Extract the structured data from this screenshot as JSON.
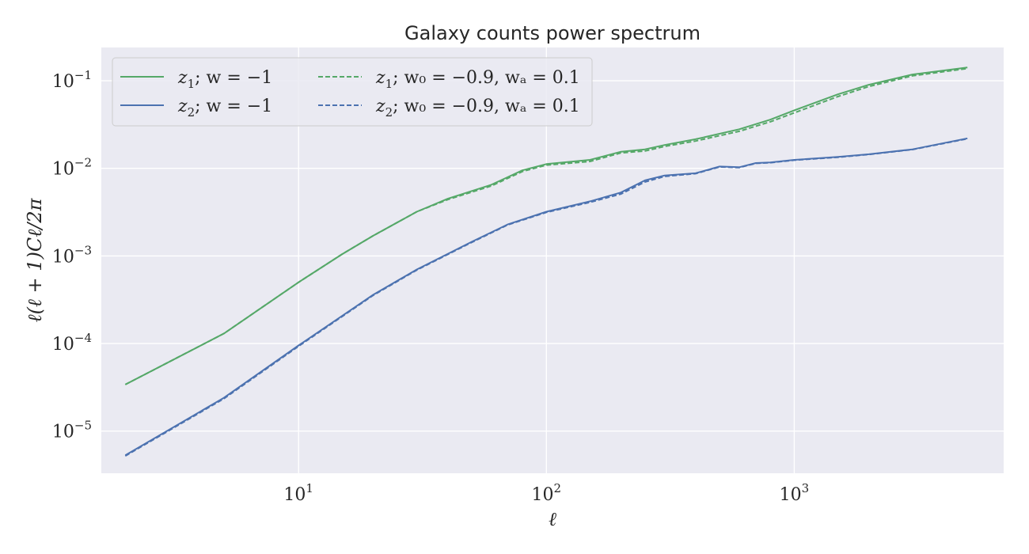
{
  "chart_data": {
    "type": "line",
    "title": "Galaxy counts power spectrum",
    "xlabel": "ℓ",
    "ylabel": "ℓ(ℓ + 1)Cℓ/2π",
    "xscale": "log",
    "yscale": "log",
    "xlim": [
      1.6,
      7000
    ],
    "ylim": [
      3.3e-06,
      0.24
    ],
    "grid": true,
    "legend_placement": "top-left",
    "x_ticks": [
      {
        "value": 10,
        "base": "10",
        "exp": "1"
      },
      {
        "value": 100,
        "base": "10",
        "exp": "2"
      },
      {
        "value": 1000,
        "base": "10",
        "exp": "3"
      }
    ],
    "y_ticks": [
      {
        "value": 0.1,
        "base": "10",
        "exp": "−1"
      },
      {
        "value": 0.01,
        "base": "10",
        "exp": "−2"
      },
      {
        "value": 0.001,
        "base": "10",
        "exp": "−3"
      },
      {
        "value": 0.0001,
        "base": "10",
        "exp": "−4"
      },
      {
        "value": 1e-05,
        "base": "10",
        "exp": "−5"
      }
    ],
    "series": [
      {
        "name": "z₁; w = −1",
        "color": "#55a868",
        "dash": "solid",
        "points": [
          [
            2,
            3.4e-05
          ],
          [
            5,
            0.00013
          ],
          [
            10,
            0.0005
          ],
          [
            15,
            0.00105
          ],
          [
            20,
            0.0017
          ],
          [
            30,
            0.0032
          ],
          [
            40,
            0.0045
          ],
          [
            60,
            0.0065
          ],
          [
            80,
            0.0095
          ],
          [
            100,
            0.0112
          ],
          [
            150,
            0.0125
          ],
          [
            200,
            0.0155
          ],
          [
            250,
            0.0165
          ],
          [
            300,
            0.0185
          ],
          [
            400,
            0.0215
          ],
          [
            600,
            0.028
          ],
          [
            800,
            0.036
          ],
          [
            1000,
            0.046
          ],
          [
            1500,
            0.07
          ],
          [
            2000,
            0.09
          ],
          [
            3000,
            0.118
          ],
          [
            5000,
            0.142
          ]
        ]
      },
      {
        "name": "z₂; w = −1",
        "color": "#4c72b0",
        "dash": "solid",
        "points": [
          [
            2,
            5.3e-06
          ],
          [
            5,
            2.4e-05
          ],
          [
            10,
            9.5e-05
          ],
          [
            20,
            0.00036
          ],
          [
            30,
            0.0007
          ],
          [
            50,
            0.00145
          ],
          [
            70,
            0.0023
          ],
          [
            100,
            0.0032
          ],
          [
            150,
            0.0042
          ],
          [
            200,
            0.0053
          ],
          [
            250,
            0.0073
          ],
          [
            300,
            0.0083
          ],
          [
            400,
            0.0088
          ],
          [
            500,
            0.0105
          ],
          [
            600,
            0.0103
          ],
          [
            700,
            0.0115
          ],
          [
            800,
            0.0117
          ],
          [
            1000,
            0.0125
          ],
          [
            1500,
            0.0135
          ],
          [
            2000,
            0.0145
          ],
          [
            3000,
            0.0165
          ],
          [
            5000,
            0.022
          ]
        ]
      },
      {
        "name": "z₁; w₀ = −0.9, wₐ = 0.1",
        "color": "#55a868",
        "dash": "dashed",
        "points": [
          [
            2,
            3.4e-05
          ],
          [
            5,
            0.00013
          ],
          [
            10,
            0.0005
          ],
          [
            15,
            0.00105
          ],
          [
            20,
            0.0017
          ],
          [
            30,
            0.0032
          ],
          [
            40,
            0.0044
          ],
          [
            60,
            0.0063
          ],
          [
            80,
            0.0092
          ],
          [
            100,
            0.0109
          ],
          [
            150,
            0.012
          ],
          [
            200,
            0.015
          ],
          [
            250,
            0.0158
          ],
          [
            300,
            0.0178
          ],
          [
            400,
            0.0205
          ],
          [
            600,
            0.0265
          ],
          [
            800,
            0.034
          ],
          [
            1000,
            0.043
          ],
          [
            1500,
            0.066
          ],
          [
            2000,
            0.086
          ],
          [
            3000,
            0.114
          ],
          [
            5000,
            0.138
          ]
        ]
      },
      {
        "name": "z₂; w₀ = −0.9, wₐ = 0.1",
        "color": "#4c72b0",
        "dash": "dashed",
        "points": [
          [
            2,
            5.2e-06
          ],
          [
            5,
            2.35e-05
          ],
          [
            10,
            9.3e-05
          ],
          [
            20,
            0.000355
          ],
          [
            30,
            0.00069
          ],
          [
            50,
            0.00143
          ],
          [
            70,
            0.00227
          ],
          [
            100,
            0.00315
          ],
          [
            150,
            0.0041
          ],
          [
            200,
            0.0051
          ],
          [
            250,
            0.007
          ],
          [
            300,
            0.0081
          ],
          [
            400,
            0.0087
          ],
          [
            500,
            0.0104
          ],
          [
            600,
            0.0102
          ],
          [
            700,
            0.0114
          ],
          [
            800,
            0.0116
          ],
          [
            1000,
            0.0124
          ],
          [
            1500,
            0.0134
          ],
          [
            2000,
            0.0144
          ],
          [
            3000,
            0.0164
          ],
          [
            5000,
            0.0218
          ]
        ]
      }
    ],
    "legend": [
      {
        "base": "z",
        "sub": "1",
        "rest": "; w = −1",
        "color": "#55a868",
        "dash": "solid"
      },
      {
        "base": "z",
        "sub": "2",
        "rest": "; w = −1",
        "color": "#4c72b0",
        "dash": "solid"
      },
      {
        "base": "z",
        "sub": "1",
        "rest": "; w₀ = −0.9, wₐ = 0.1",
        "color": "#55a868",
        "dash": "dashed"
      },
      {
        "base": "z",
        "sub": "2",
        "rest": "; w₀ = −0.9, wₐ = 0.1",
        "color": "#4c72b0",
        "dash": "dashed"
      }
    ]
  }
}
